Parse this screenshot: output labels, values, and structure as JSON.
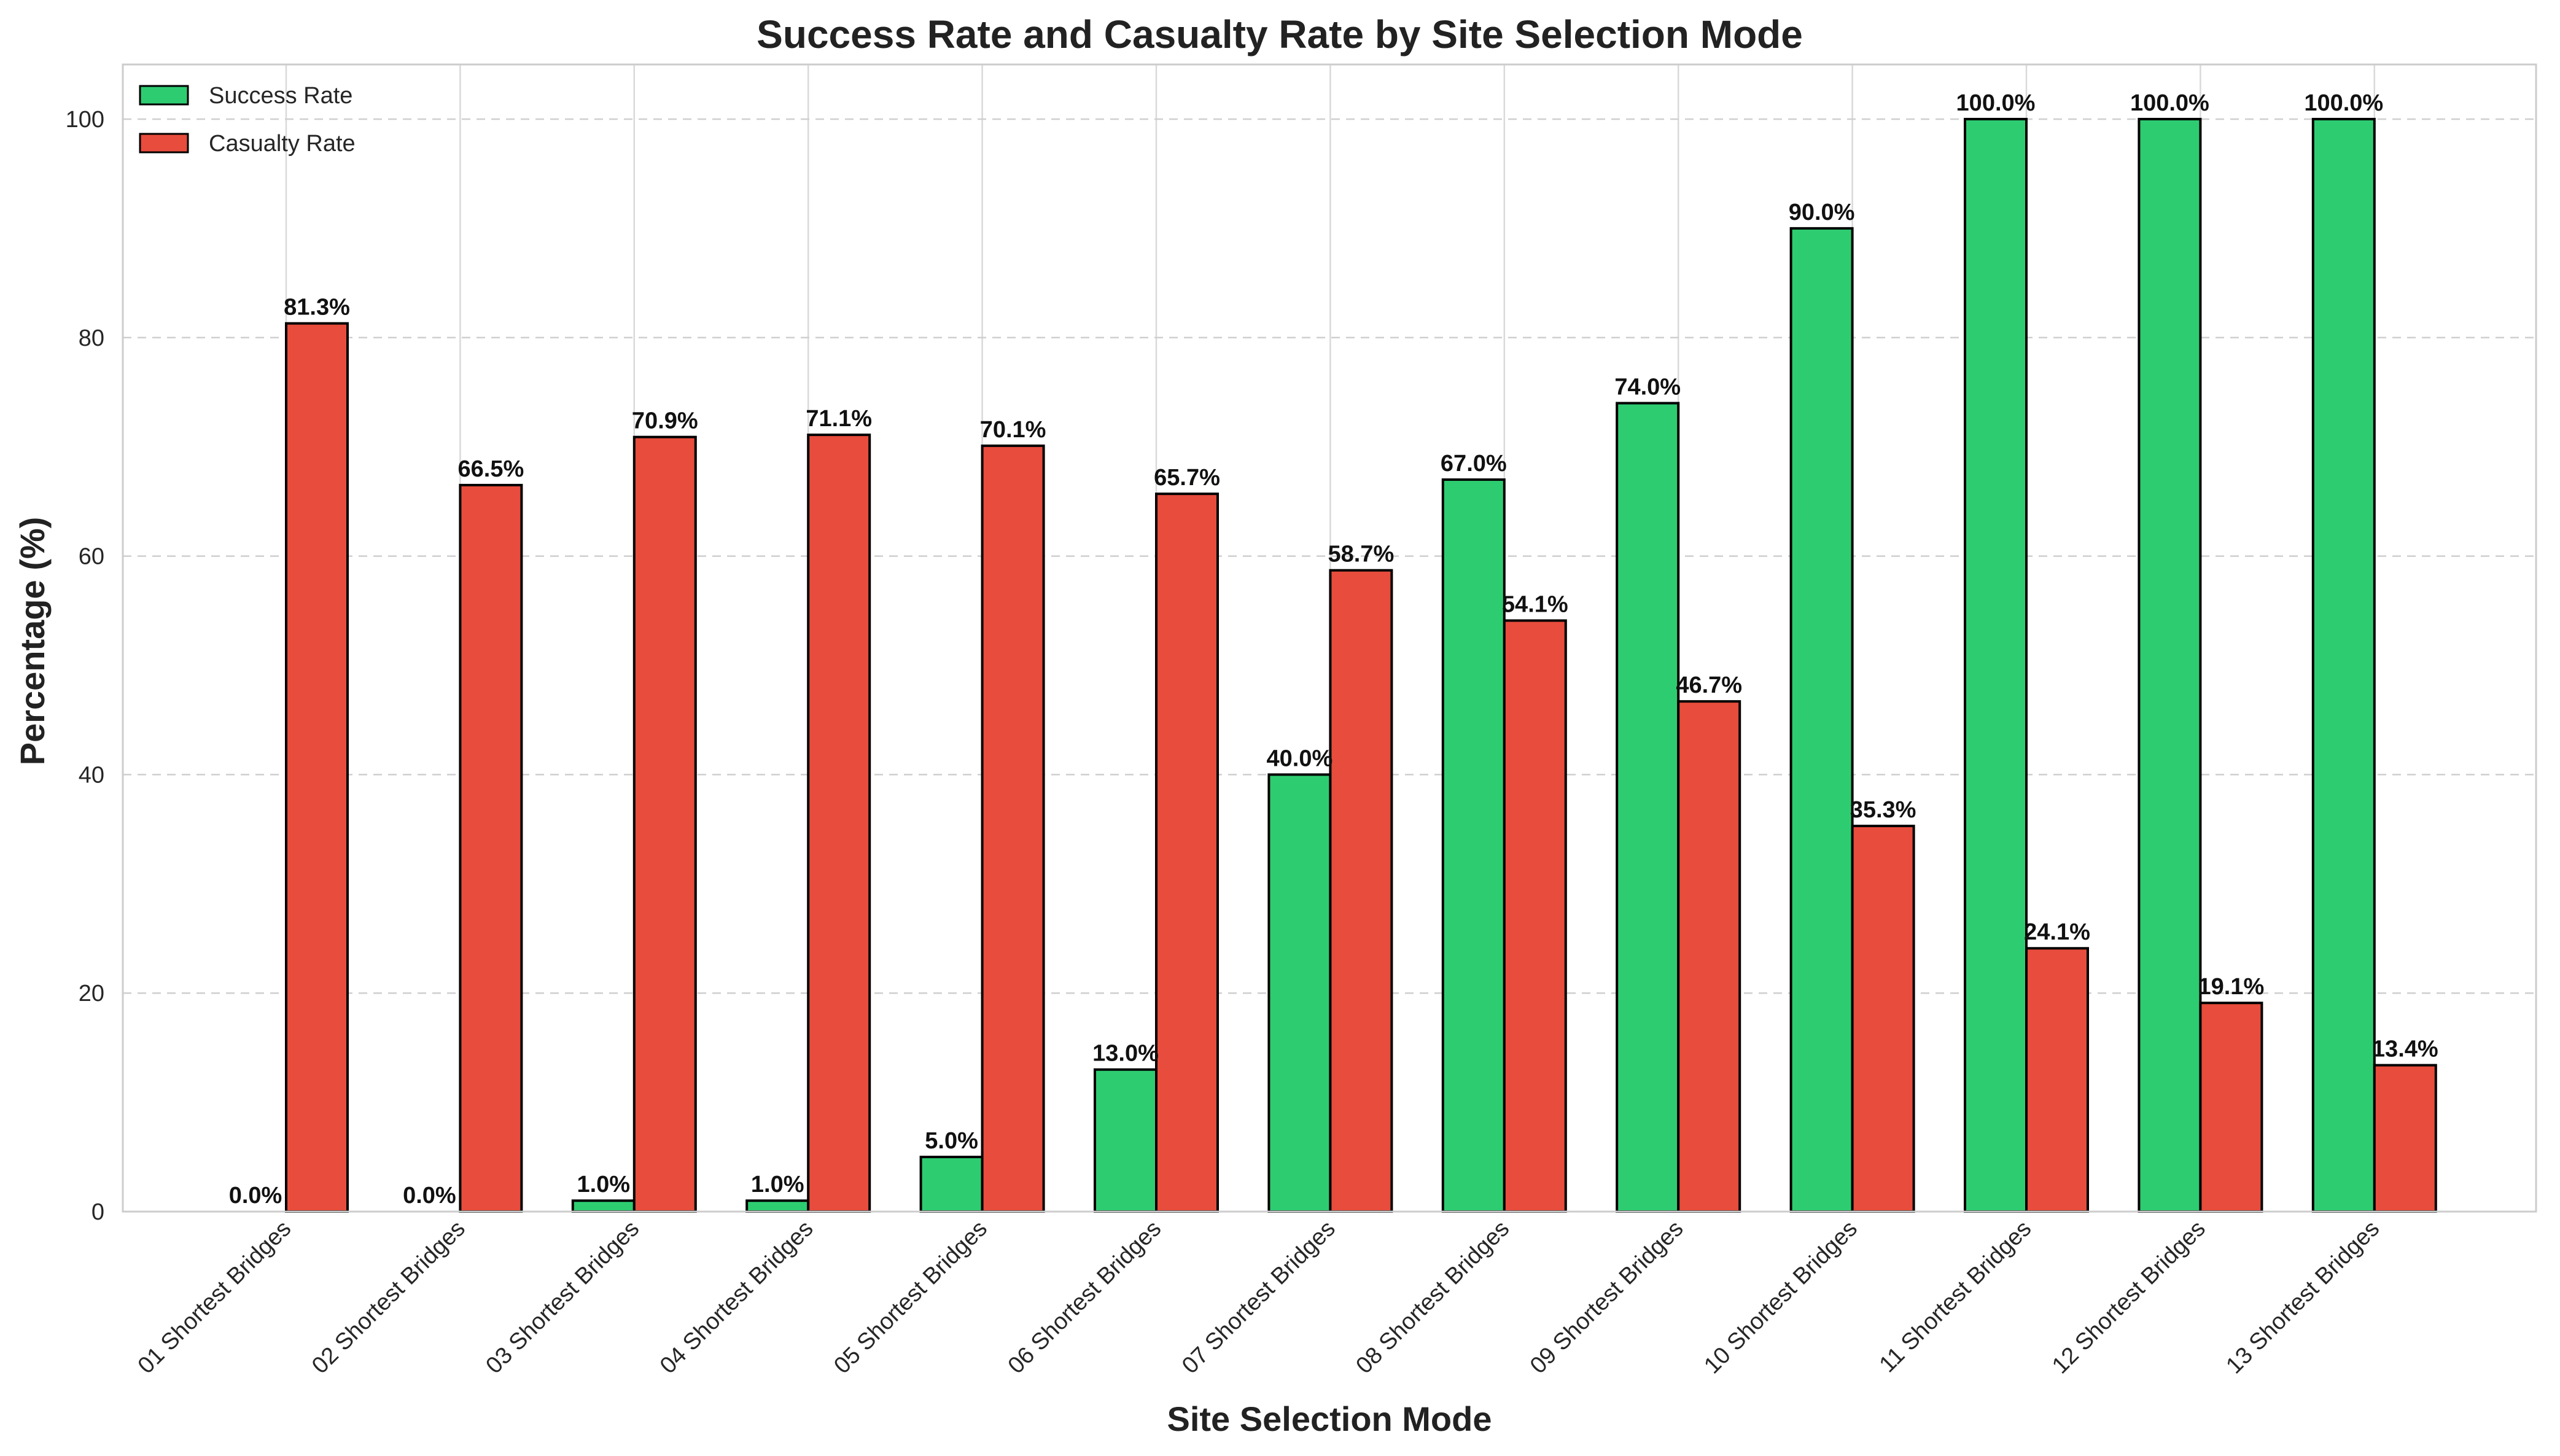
{
  "chart_data": {
    "type": "bar",
    "title": "Success Rate and Casualty Rate by Site Selection Mode",
    "xlabel": "Site Selection Mode",
    "ylabel": "Percentage (%)",
    "ylim": [
      0,
      105
    ],
    "yticks": [
      0,
      20,
      40,
      60,
      80,
      100
    ],
    "grid": true,
    "legend_position": "top-left",
    "value_suffix": "%",
    "categories": [
      "01 Shortest Bridges",
      "02 Shortest Bridges",
      "03 Shortest Bridges",
      "04 Shortest Bridges",
      "05 Shortest Bridges",
      "06 Shortest Bridges",
      "07 Shortest Bridges",
      "08 Shortest Bridges",
      "09 Shortest Bridges",
      "10 Shortest Bridges",
      "11 Shortest Bridges",
      "12 Shortest Bridges",
      "13 Shortest Bridges"
    ],
    "series": [
      {
        "name": "Success Rate",
        "color": "#2ecc71",
        "values": [
          0.0,
          0.0,
          1.0,
          1.0,
          5.0,
          13.0,
          40.0,
          67.0,
          74.0,
          90.0,
          100.0,
          100.0,
          100.0
        ]
      },
      {
        "name": "Casualty Rate",
        "color": "#e74c3c",
        "values": [
          81.3,
          66.5,
          70.9,
          71.1,
          70.1,
          65.7,
          58.7,
          54.1,
          46.7,
          35.3,
          24.1,
          19.1,
          13.4
        ]
      }
    ]
  }
}
